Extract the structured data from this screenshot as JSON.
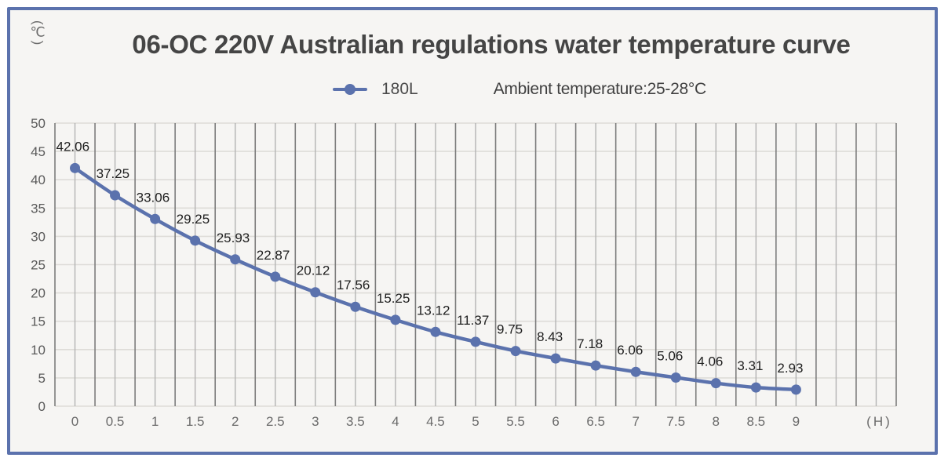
{
  "chart_data": {
    "type": "line",
    "title": "06-OC 220V Australian regulations water temperature curve",
    "ylabel": "(℃)",
    "xlabel": "(H)",
    "ylim": [
      0,
      50
    ],
    "yticks": [
      0,
      5,
      10,
      15,
      20,
      25,
      30,
      35,
      40,
      45,
      50
    ],
    "categories": [
      "0",
      "0.5",
      "1",
      "1.5",
      "2",
      "2.5",
      "3",
      "3.5",
      "4",
      "4.5",
      "5",
      "5.5",
      "6",
      "6.5",
      "7",
      "7.5",
      "8",
      "8.5",
      "9"
    ],
    "extra_empty_slots": 2,
    "grid": true,
    "legend_position": "top-center",
    "annotation": "Ambient temperature:25-28°C",
    "series": [
      {
        "name": "180L",
        "color": "#5b72ad",
        "values": [
          42.06,
          37.25,
          33.06,
          29.25,
          25.93,
          22.87,
          20.12,
          17.56,
          15.25,
          13.12,
          11.37,
          9.75,
          8.43,
          7.18,
          6.06,
          5.06,
          4.06,
          3.31,
          2.93
        ],
        "labels": [
          "42.06",
          "37.25",
          "33.06",
          "29.25",
          "25.93",
          "22.87",
          "20.12",
          "17.56",
          "15.25",
          "13.12",
          "11.37",
          "9.75",
          "8.43",
          "7.18",
          "6.06",
          "5.06",
          "4.06",
          "3.31",
          "2.93"
        ]
      }
    ]
  }
}
